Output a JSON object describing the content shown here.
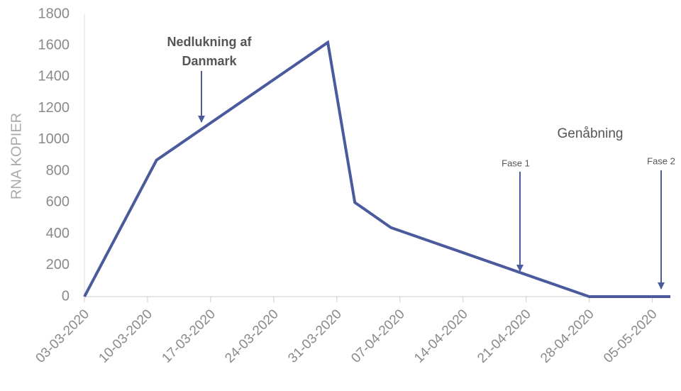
{
  "chart_data": {
    "type": "line",
    "y_label": "RNA KOPIER",
    "x": [
      "2020-03-03",
      "2020-03-11",
      "2020-03-30",
      "2020-04-02",
      "2020-04-06",
      "2020-04-28",
      "2020-05-07"
    ],
    "series": [
      {
        "name": "RNA KOPIER",
        "color": "#4a5a9c",
        "values": [
          0,
          870,
          1620,
          600,
          440,
          0,
          0
        ]
      }
    ],
    "xlim": [
      "2020-03-03",
      "2020-05-07"
    ],
    "xticks": [
      {
        "value": "2020-03-03",
        "label": "03-03-2020"
      },
      {
        "value": "2020-03-10",
        "label": "10-03-2020"
      },
      {
        "value": "2020-03-17",
        "label": "17-03-2020"
      },
      {
        "value": "2020-03-24",
        "label": "24-03-2020"
      },
      {
        "value": "2020-03-31",
        "label": "31-03-2020"
      },
      {
        "value": "2020-04-07",
        "label": "07-04-2020"
      },
      {
        "value": "2020-04-14",
        "label": "14-04-2020"
      },
      {
        "value": "2020-04-21",
        "label": "21-04-2020"
      },
      {
        "value": "2020-04-28",
        "label": "28-04-2020"
      },
      {
        "value": "2020-05-05",
        "label": "05-05-2020"
      }
    ],
    "ylim": [
      0,
      1800
    ],
    "yticks": [
      0,
      200,
      400,
      600,
      800,
      1000,
      1200,
      1400,
      1600,
      1800
    ],
    "grid": false,
    "annotations": [
      {
        "lines": [
          "Nedlukning af",
          "Danmark"
        ]
      },
      {
        "lines": [
          "Genåbning"
        ]
      },
      {
        "lines": [
          "Fase 1"
        ]
      },
      {
        "lines": [
          "Fase 2"
        ]
      }
    ]
  }
}
